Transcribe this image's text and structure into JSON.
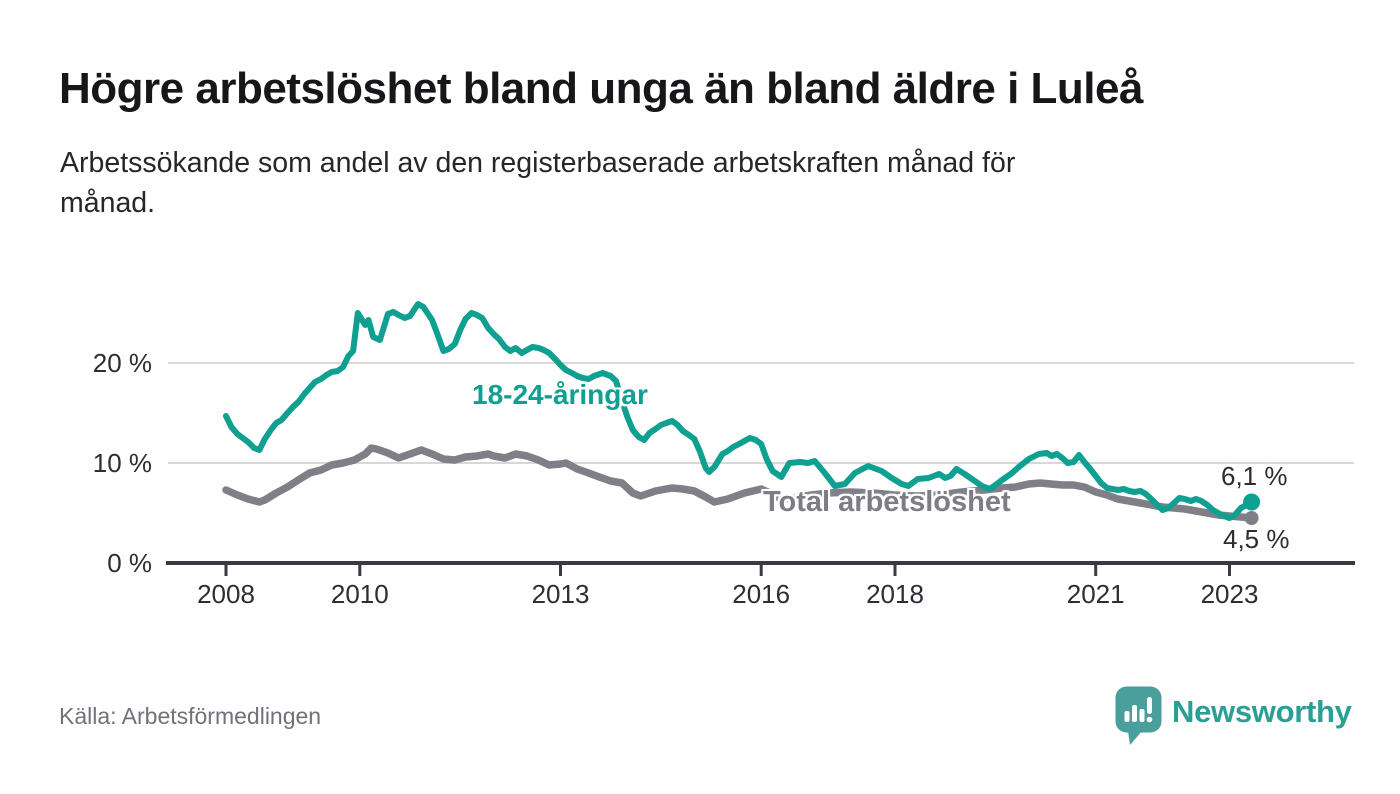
{
  "header": {
    "title": "Högre arbetslöshet bland unga än bland äldre i Luleå",
    "subtitle_line1": "Arbetssökande som andel av den registerbaserade arbetskraften månad för",
    "subtitle_line2": "månad."
  },
  "footer": {
    "source": "Källa: Arbetsförmedlingen",
    "brand": "Newsworthy"
  },
  "colors": {
    "youth_line": "#0FA091",
    "total_line": "#7F7F88",
    "grid": "#D8D8D8",
    "axis": "#3A3A40",
    "tick_text": "#2D2D33",
    "logo_icon": "#4A9E9B",
    "logo_text": "#2AA094"
  },
  "chart_data": {
    "type": "line",
    "x_axis": {
      "unit": "year"
    },
    "y_axis": {
      "unit": "%",
      "range": [
        0,
        26.5
      ]
    },
    "grid": "horizontal",
    "y_ticks": [
      {
        "value": 0,
        "label": "0 %"
      },
      {
        "value": 10,
        "label": "10 %"
      },
      {
        "value": 20,
        "label": "20 %"
      }
    ],
    "x_ticks": [
      {
        "year": 2008,
        "label": "2008"
      },
      {
        "year": 2010,
        "label": "2010"
      },
      {
        "year": 2013,
        "label": "2013"
      },
      {
        "year": 2016,
        "label": "2016"
      },
      {
        "year": 2018,
        "label": "2018"
      },
      {
        "year": 2021,
        "label": "2021"
      },
      {
        "year": 2023,
        "label": "2023"
      }
    ],
    "series": [
      {
        "name": "18-24-åringar",
        "color": "#0FA091",
        "end_label": "6,1 %",
        "end_value": 6.1,
        "points": [
          [
            2008.0,
            14.7
          ],
          [
            2008.08,
            13.6
          ],
          [
            2008.17,
            12.9
          ],
          [
            2008.25,
            12.5
          ],
          [
            2008.33,
            12.1
          ],
          [
            2008.42,
            11.5
          ],
          [
            2008.5,
            11.3
          ],
          [
            2008.58,
            12.4
          ],
          [
            2008.67,
            13.3
          ],
          [
            2008.75,
            14.0
          ],
          [
            2008.83,
            14.3
          ],
          [
            2008.92,
            15.0
          ],
          [
            2009.0,
            15.6
          ],
          [
            2009.08,
            16.1
          ],
          [
            2009.17,
            16.9
          ],
          [
            2009.25,
            17.5
          ],
          [
            2009.33,
            18.1
          ],
          [
            2009.42,
            18.4
          ],
          [
            2009.5,
            18.8
          ],
          [
            2009.58,
            19.1
          ],
          [
            2009.67,
            19.2
          ],
          [
            2009.75,
            19.6
          ],
          [
            2009.83,
            20.7
          ],
          [
            2009.9,
            21.2
          ],
          [
            2009.97,
            25.0
          ],
          [
            2010.08,
            23.8
          ],
          [
            2010.13,
            24.3
          ],
          [
            2010.2,
            22.6
          ],
          [
            2010.3,
            22.3
          ],
          [
            2010.42,
            24.9
          ],
          [
            2010.5,
            25.1
          ],
          [
            2010.58,
            24.8
          ],
          [
            2010.67,
            24.5
          ],
          [
            2010.75,
            24.7
          ],
          [
            2010.87,
            25.9
          ],
          [
            2010.95,
            25.6
          ],
          [
            2011.08,
            24.3
          ],
          [
            2011.17,
            22.7
          ],
          [
            2011.25,
            21.2
          ],
          [
            2011.33,
            21.4
          ],
          [
            2011.42,
            21.9
          ],
          [
            2011.5,
            23.3
          ],
          [
            2011.58,
            24.4
          ],
          [
            2011.67,
            25.0
          ],
          [
            2011.75,
            24.8
          ],
          [
            2011.83,
            24.5
          ],
          [
            2011.92,
            23.5
          ],
          [
            2012.0,
            22.9
          ],
          [
            2012.08,
            22.4
          ],
          [
            2012.17,
            21.6
          ],
          [
            2012.25,
            21.2
          ],
          [
            2012.33,
            21.5
          ],
          [
            2012.42,
            21.0
          ],
          [
            2012.5,
            21.3
          ],
          [
            2012.58,
            21.6
          ],
          [
            2012.67,
            21.5
          ],
          [
            2012.75,
            21.3
          ],
          [
            2012.83,
            21.0
          ],
          [
            2012.92,
            20.4
          ],
          [
            2013.0,
            19.8
          ],
          [
            2013.08,
            19.3
          ],
          [
            2013.17,
            19.0
          ],
          [
            2013.25,
            18.7
          ],
          [
            2013.33,
            18.5
          ],
          [
            2013.42,
            18.4
          ],
          [
            2013.5,
            18.7
          ],
          [
            2013.63,
            19.0
          ],
          [
            2013.75,
            18.7
          ],
          [
            2013.83,
            18.2
          ],
          [
            2013.92,
            16.2
          ],
          [
            2014.0,
            14.6
          ],
          [
            2014.08,
            13.3
          ],
          [
            2014.17,
            12.6
          ],
          [
            2014.25,
            12.3
          ],
          [
            2014.33,
            13.0
          ],
          [
            2014.42,
            13.4
          ],
          [
            2014.5,
            13.8
          ],
          [
            2014.58,
            14.0
          ],
          [
            2014.67,
            14.2
          ],
          [
            2014.75,
            13.8
          ],
          [
            2014.83,
            13.2
          ],
          [
            2014.92,
            12.8
          ],
          [
            2015.0,
            12.4
          ],
          [
            2015.08,
            11.2
          ],
          [
            2015.17,
            9.5
          ],
          [
            2015.22,
            9.1
          ],
          [
            2015.3,
            9.6
          ],
          [
            2015.42,
            10.9
          ],
          [
            2015.5,
            11.2
          ],
          [
            2015.58,
            11.6
          ],
          [
            2015.67,
            11.9
          ],
          [
            2015.75,
            12.2
          ],
          [
            2015.83,
            12.5
          ],
          [
            2015.92,
            12.3
          ],
          [
            2016.0,
            11.9
          ],
          [
            2016.08,
            10.4
          ],
          [
            2016.17,
            9.2
          ],
          [
            2016.3,
            8.6
          ],
          [
            2016.42,
            10.0
          ],
          [
            2016.58,
            10.1
          ],
          [
            2016.7,
            10.0
          ],
          [
            2016.8,
            10.2
          ],
          [
            2016.95,
            9.0
          ],
          [
            2017.1,
            7.7
          ],
          [
            2017.25,
            7.9
          ],
          [
            2017.4,
            9.0
          ],
          [
            2017.6,
            9.7
          ],
          [
            2017.8,
            9.2
          ],
          [
            2017.95,
            8.5
          ],
          [
            2018.1,
            7.9
          ],
          [
            2018.2,
            7.7
          ],
          [
            2018.34,
            8.4
          ],
          [
            2018.5,
            8.5
          ],
          [
            2018.58,
            8.7
          ],
          [
            2018.66,
            8.9
          ],
          [
            2018.75,
            8.5
          ],
          [
            2018.83,
            8.7
          ],
          [
            2018.92,
            9.4
          ],
          [
            2019.04,
            8.9
          ],
          [
            2019.17,
            8.3
          ],
          [
            2019.3,
            7.7
          ],
          [
            2019.42,
            7.4
          ],
          [
            2019.58,
            8.2
          ],
          [
            2019.75,
            9.0
          ],
          [
            2019.85,
            9.6
          ],
          [
            2020.0,
            10.4
          ],
          [
            2020.15,
            10.9
          ],
          [
            2020.27,
            11.0
          ],
          [
            2020.34,
            10.7
          ],
          [
            2020.42,
            10.9
          ],
          [
            2020.5,
            10.5
          ],
          [
            2020.58,
            10.0
          ],
          [
            2020.67,
            10.1
          ],
          [
            2020.75,
            10.8
          ],
          [
            2020.83,
            10.1
          ],
          [
            2020.92,
            9.4
          ],
          [
            2021.0,
            8.7
          ],
          [
            2021.08,
            8.0
          ],
          [
            2021.17,
            7.5
          ],
          [
            2021.25,
            7.4
          ],
          [
            2021.33,
            7.3
          ],
          [
            2021.42,
            7.4
          ],
          [
            2021.5,
            7.2
          ],
          [
            2021.58,
            7.1
          ],
          [
            2021.67,
            7.2
          ],
          [
            2021.75,
            6.9
          ],
          [
            2021.83,
            6.4
          ],
          [
            2021.92,
            5.8
          ],
          [
            2022.0,
            5.3
          ],
          [
            2022.08,
            5.5
          ],
          [
            2022.17,
            6.0
          ],
          [
            2022.25,
            6.5
          ],
          [
            2022.33,
            6.4
          ],
          [
            2022.42,
            6.2
          ],
          [
            2022.5,
            6.4
          ],
          [
            2022.58,
            6.2
          ],
          [
            2022.67,
            5.8
          ],
          [
            2022.75,
            5.3
          ],
          [
            2022.83,
            5.0
          ],
          [
            2022.92,
            4.7
          ],
          [
            2023.0,
            4.5
          ],
          [
            2023.08,
            4.8
          ],
          [
            2023.17,
            5.5
          ],
          [
            2023.33,
            6.1
          ]
        ]
      },
      {
        "name": "Total arbetslöshet",
        "color": "#7F7F88",
        "end_label": "4,5 %",
        "end_value": 4.5,
        "points": [
          [
            2008.0,
            7.3
          ],
          [
            2008.17,
            6.8
          ],
          [
            2008.33,
            6.4
          ],
          [
            2008.5,
            6.1
          ],
          [
            2008.58,
            6.3
          ],
          [
            2008.75,
            7.0
          ],
          [
            2008.92,
            7.6
          ],
          [
            2009.08,
            8.3
          ],
          [
            2009.25,
            9.0
          ],
          [
            2009.42,
            9.3
          ],
          [
            2009.58,
            9.8
          ],
          [
            2009.75,
            10.0
          ],
          [
            2009.92,
            10.3
          ],
          [
            2010.08,
            10.9
          ],
          [
            2010.17,
            11.5
          ],
          [
            2010.25,
            11.4
          ],
          [
            2010.42,
            11.0
          ],
          [
            2010.58,
            10.5
          ],
          [
            2010.75,
            10.9
          ],
          [
            2010.92,
            11.3
          ],
          [
            2011.0,
            11.1
          ],
          [
            2011.08,
            10.9
          ],
          [
            2011.25,
            10.4
          ],
          [
            2011.42,
            10.3
          ],
          [
            2011.58,
            10.6
          ],
          [
            2011.75,
            10.7
          ],
          [
            2011.92,
            10.9
          ],
          [
            2012.0,
            10.7
          ],
          [
            2012.17,
            10.5
          ],
          [
            2012.33,
            10.9
          ],
          [
            2012.5,
            10.7
          ],
          [
            2012.67,
            10.3
          ],
          [
            2012.83,
            9.8
          ],
          [
            2013.0,
            9.9
          ],
          [
            2013.08,
            10.0
          ],
          [
            2013.25,
            9.4
          ],
          [
            2013.42,
            9.0
          ],
          [
            2013.58,
            8.6
          ],
          [
            2013.75,
            8.2
          ],
          [
            2013.92,
            8.0
          ],
          [
            2014.08,
            7.0
          ],
          [
            2014.2,
            6.7
          ],
          [
            2014.42,
            7.2
          ],
          [
            2014.58,
            7.4
          ],
          [
            2014.67,
            7.5
          ],
          [
            2014.83,
            7.4
          ],
          [
            2015.0,
            7.2
          ],
          [
            2015.17,
            6.6
          ],
          [
            2015.3,
            6.1
          ],
          [
            2015.5,
            6.4
          ],
          [
            2015.75,
            7.0
          ],
          [
            2016.0,
            7.4
          ],
          [
            2016.17,
            6.9
          ],
          [
            2016.3,
            6.4
          ],
          [
            2016.5,
            6.5
          ],
          [
            2016.75,
            6.8
          ],
          [
            2017.0,
            7.0
          ],
          [
            2017.33,
            7.1
          ],
          [
            2017.67,
            7.0
          ],
          [
            2018.0,
            6.8
          ],
          [
            2018.33,
            6.7
          ],
          [
            2018.67,
            6.8
          ],
          [
            2019.0,
            7.1
          ],
          [
            2019.33,
            7.3
          ],
          [
            2019.6,
            7.5
          ],
          [
            2019.8,
            7.6
          ],
          [
            2020.0,
            7.9
          ],
          [
            2020.17,
            8.0
          ],
          [
            2020.33,
            7.9
          ],
          [
            2020.5,
            7.8
          ],
          [
            2020.67,
            7.8
          ],
          [
            2020.83,
            7.6
          ],
          [
            2021.0,
            7.1
          ],
          [
            2021.17,
            6.8
          ],
          [
            2021.33,
            6.4
          ],
          [
            2021.5,
            6.2
          ],
          [
            2021.67,
            6.0
          ],
          [
            2021.83,
            5.8
          ],
          [
            2022.0,
            5.6
          ],
          [
            2022.17,
            5.5
          ],
          [
            2022.33,
            5.4
          ],
          [
            2022.5,
            5.2
          ],
          [
            2022.67,
            5.0
          ],
          [
            2022.83,
            4.8
          ],
          [
            2023.0,
            4.7
          ],
          [
            2023.17,
            4.6
          ],
          [
            2023.33,
            4.5
          ]
        ]
      }
    ]
  }
}
